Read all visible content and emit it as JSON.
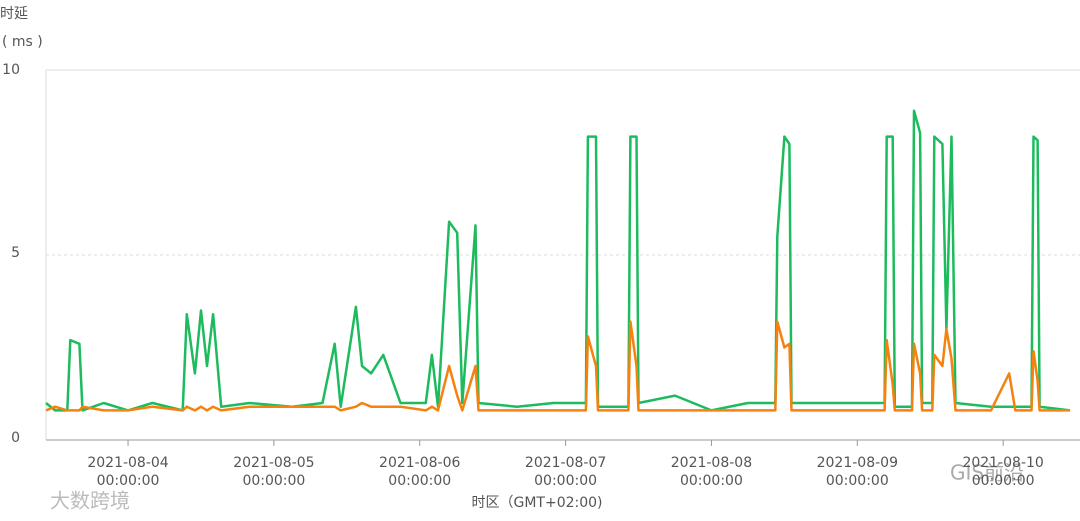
{
  "chart_data": {
    "type": "line",
    "ylabel": "时延",
    "yunit": "( ms )",
    "xlabel": "时区（GMT+02:00)",
    "watermarks": [
      "大数跨境",
      "GIS前沿"
    ],
    "xlim": [
      "2021-08-03 10:30:00",
      "2021-08-10 11:00:00"
    ],
    "xticks": [
      "2021-08-04 00:00:00",
      "2021-08-05 00:00:00",
      "2021-08-06 00:00:00",
      "2021-08-07 00:00:00",
      "2021-08-08 00:00:00",
      "2021-08-09 00:00:00",
      "2021-08-10 00:00:00"
    ],
    "ylim": [
      0,
      10
    ],
    "yticks": [
      0,
      5,
      10
    ],
    "grid": true,
    "x": [
      "2021-08-03 10:30:00",
      "2021-08-03 12:00:00",
      "2021-08-03 14:00:00",
      "2021-08-03 14:30:00",
      "2021-08-03 16:00:00",
      "2021-08-03 16:30:00",
      "2021-08-03 20:00:00",
      "2021-08-04 00:00:00",
      "2021-08-04 04:00:00",
      "2021-08-04 09:00:00",
      "2021-08-04 09:40:00",
      "2021-08-04 11:00:00",
      "2021-08-04 12:00:00",
      "2021-08-04 13:00:00",
      "2021-08-04 14:00:00",
      "2021-08-04 15:20:00",
      "2021-08-04 20:00:00",
      "2021-08-05 03:00:00",
      "2021-08-05 08:00:00",
      "2021-08-05 10:00:00",
      "2021-08-05 11:00:00",
      "2021-08-05 13:30:00",
      "2021-08-05 14:30:00",
      "2021-08-05 16:00:00",
      "2021-08-05 18:00:00",
      "2021-08-05 20:50:00",
      "2021-08-06 01:00:00",
      "2021-08-06 02:00:00",
      "2021-08-06 03:00:00",
      "2021-08-06 04:50:00",
      "2021-08-06 06:10:00",
      "2021-08-06 07:00:00",
      "2021-08-06 09:10:00",
      "2021-08-06 09:40:00",
      "2021-08-06 16:00:00",
      "2021-08-06 22:00:00",
      "2021-08-07 03:20:00",
      "2021-08-07 03:40:00",
      "2021-08-07 05:00:00",
      "2021-08-07 05:20:00",
      "2021-08-07 10:20:00",
      "2021-08-07 10:40:00",
      "2021-08-07 11:40:00",
      "2021-08-07 12:00:00",
      "2021-08-07 18:00:00",
      "2021-08-08 00:00:00",
      "2021-08-08 06:00:00",
      "2021-08-08 10:30:00",
      "2021-08-08 10:50:00",
      "2021-08-08 12:00:00",
      "2021-08-08 12:50:00",
      "2021-08-08 13:10:00",
      "2021-08-08 20:00:00",
      "2021-08-09 04:30:00",
      "2021-08-09 04:50:00",
      "2021-08-09 05:50:00",
      "2021-08-09 06:10:00",
      "2021-08-09 09:00:00",
      "2021-08-09 09:20:00",
      "2021-08-09 10:20:00",
      "2021-08-09 10:40:00",
      "2021-08-09 12:20:00",
      "2021-08-09 12:40:00",
      "2021-08-09 14:00:00",
      "2021-08-09 14:40:00",
      "2021-08-09 15:30:00",
      "2021-08-09 16:10:00",
      "2021-08-09 22:00:00",
      "2021-08-10 01:00:00",
      "2021-08-10 02:00:00",
      "2021-08-10 04:40:00",
      "2021-08-10 05:00:00",
      "2021-08-10 05:40:00",
      "2021-08-10 06:00:00",
      "2021-08-10 11:00:00"
    ],
    "series": [
      {
        "color": "#1dbb5e",
        "values": [
          1.0,
          0.8,
          0.8,
          2.7,
          2.6,
          0.8,
          1.0,
          0.8,
          1.0,
          0.8,
          3.4,
          1.8,
          3.5,
          2.0,
          3.4,
          0.9,
          1.0,
          0.9,
          1.0,
          2.6,
          0.9,
          3.6,
          2.0,
          1.8,
          2.3,
          1.0,
          1.0,
          2.3,
          0.9,
          5.9,
          5.6,
          1.0,
          5.8,
          1.0,
          0.9,
          1.0,
          1.0,
          8.2,
          8.2,
          0.9,
          0.9,
          8.2,
          8.2,
          1.0,
          1.2,
          0.8,
          1.0,
          1.0,
          5.5,
          8.2,
          8.0,
          1.0,
          1.0,
          1.0,
          8.2,
          8.2,
          0.9,
          0.9,
          8.9,
          8.3,
          1.0,
          1.0,
          8.2,
          8.0,
          3.0,
          8.2,
          1.0,
          0.9,
          0.9,
          0.9,
          0.9,
          8.2,
          8.1,
          0.9,
          0.8
        ]
      },
      {
        "color": "#f5820f",
        "values": [
          0.8,
          0.9,
          0.8,
          0.8,
          0.8,
          0.9,
          0.8,
          0.8,
          0.9,
          0.8,
          0.9,
          0.8,
          0.9,
          0.8,
          0.9,
          0.8,
          0.9,
          0.9,
          0.9,
          0.9,
          0.8,
          0.9,
          1.0,
          0.9,
          0.9,
          0.9,
          0.8,
          0.9,
          0.8,
          2.0,
          1.2,
          0.8,
          2.0,
          0.8,
          0.8,
          0.8,
          0.8,
          2.8,
          2.0,
          0.8,
          0.8,
          3.2,
          2.0,
          0.8,
          0.8,
          0.8,
          0.8,
          0.8,
          3.2,
          2.5,
          2.6,
          0.8,
          0.8,
          0.8,
          2.7,
          1.5,
          0.8,
          0.8,
          2.6,
          1.8,
          0.8,
          0.8,
          2.3,
          2.0,
          3.0,
          2.2,
          0.8,
          0.8,
          1.8,
          0.8,
          0.8,
          2.4,
          1.6,
          0.8,
          0.8
        ]
      }
    ]
  }
}
